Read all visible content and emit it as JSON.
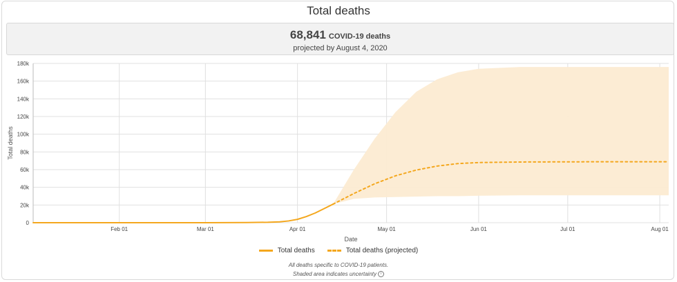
{
  "panel": {
    "title": "Total deaths"
  },
  "summary": {
    "total": "68,841",
    "unit": "COVID-19 deaths",
    "projected_label": "projected by August 4, 2020"
  },
  "legend": {
    "actual": "Total deaths",
    "projected": "Total deaths (projected)"
  },
  "notes": {
    "line1": "All deaths specific to COVID-19 patients.",
    "line2": "Shaded area indicates uncertainty"
  },
  "colors": {
    "line": "#f4a71d",
    "band": "#fcebd2",
    "grid": "#e0e0e0"
  },
  "chart_data": {
    "type": "line",
    "xlabel": "Date",
    "ylabel": "Total deaths",
    "ylim": [
      0,
      180000
    ],
    "xlim": [
      "2020-01-03",
      "2020-08-04"
    ],
    "y_ticks": [
      0,
      20000,
      40000,
      60000,
      80000,
      100000,
      120000,
      140000,
      160000,
      180000
    ],
    "y_tick_labels": [
      "0",
      "20k",
      "40k",
      "60k",
      "80k",
      "100k",
      "120k",
      "140k",
      "160k",
      "180k"
    ],
    "x_ticks": [
      "2020-02-01",
      "2020-03-01",
      "2020-04-01",
      "2020-05-01",
      "2020-06-01",
      "2020-07-01",
      "2020-08-01"
    ],
    "x_tick_labels": [
      "Feb 01",
      "Mar 01",
      "Apr 01",
      "May 01",
      "Jun 01",
      "Jul 01",
      "Aug 01"
    ],
    "grid": true,
    "legend_position": "bottom",
    "series": [
      {
        "name": "Total deaths",
        "style": "solid",
        "x": [
          "2020-01-03",
          "2020-02-01",
          "2020-03-01",
          "2020-03-15",
          "2020-03-22",
          "2020-03-26",
          "2020-03-29",
          "2020-04-01",
          "2020-04-04",
          "2020-04-07",
          "2020-04-10",
          "2020-04-13"
        ],
        "y": [
          0,
          0,
          0,
          200,
          500,
          1000,
          2000,
          3800,
          7000,
          11000,
          16000,
          21000
        ]
      },
      {
        "name": "Total deaths (projected)",
        "style": "dashed",
        "x": [
          "2020-04-13",
          "2020-04-20",
          "2020-04-27",
          "2020-05-04",
          "2020-05-11",
          "2020-05-18",
          "2020-05-25",
          "2020-06-01",
          "2020-06-15",
          "2020-07-01",
          "2020-07-15",
          "2020-08-04"
        ],
        "y": [
          21000,
          33000,
          44000,
          53000,
          59500,
          64000,
          66800,
          68000,
          68600,
          68800,
          68840,
          68841
        ]
      }
    ],
    "uncertainty_band": {
      "x": [
        "2020-04-13",
        "2020-04-20",
        "2020-04-27",
        "2020-05-04",
        "2020-05-11",
        "2020-05-18",
        "2020-05-25",
        "2020-06-01",
        "2020-06-15",
        "2020-07-01",
        "2020-08-04"
      ],
      "lower": [
        21000,
        27000,
        28500,
        29000,
        29500,
        30000,
        30000,
        30500,
        31000,
        31000,
        31000
      ],
      "upper": [
        21000,
        60000,
        95000,
        125000,
        148000,
        162000,
        170000,
        174000,
        176000,
        176000,
        176000
      ]
    }
  }
}
